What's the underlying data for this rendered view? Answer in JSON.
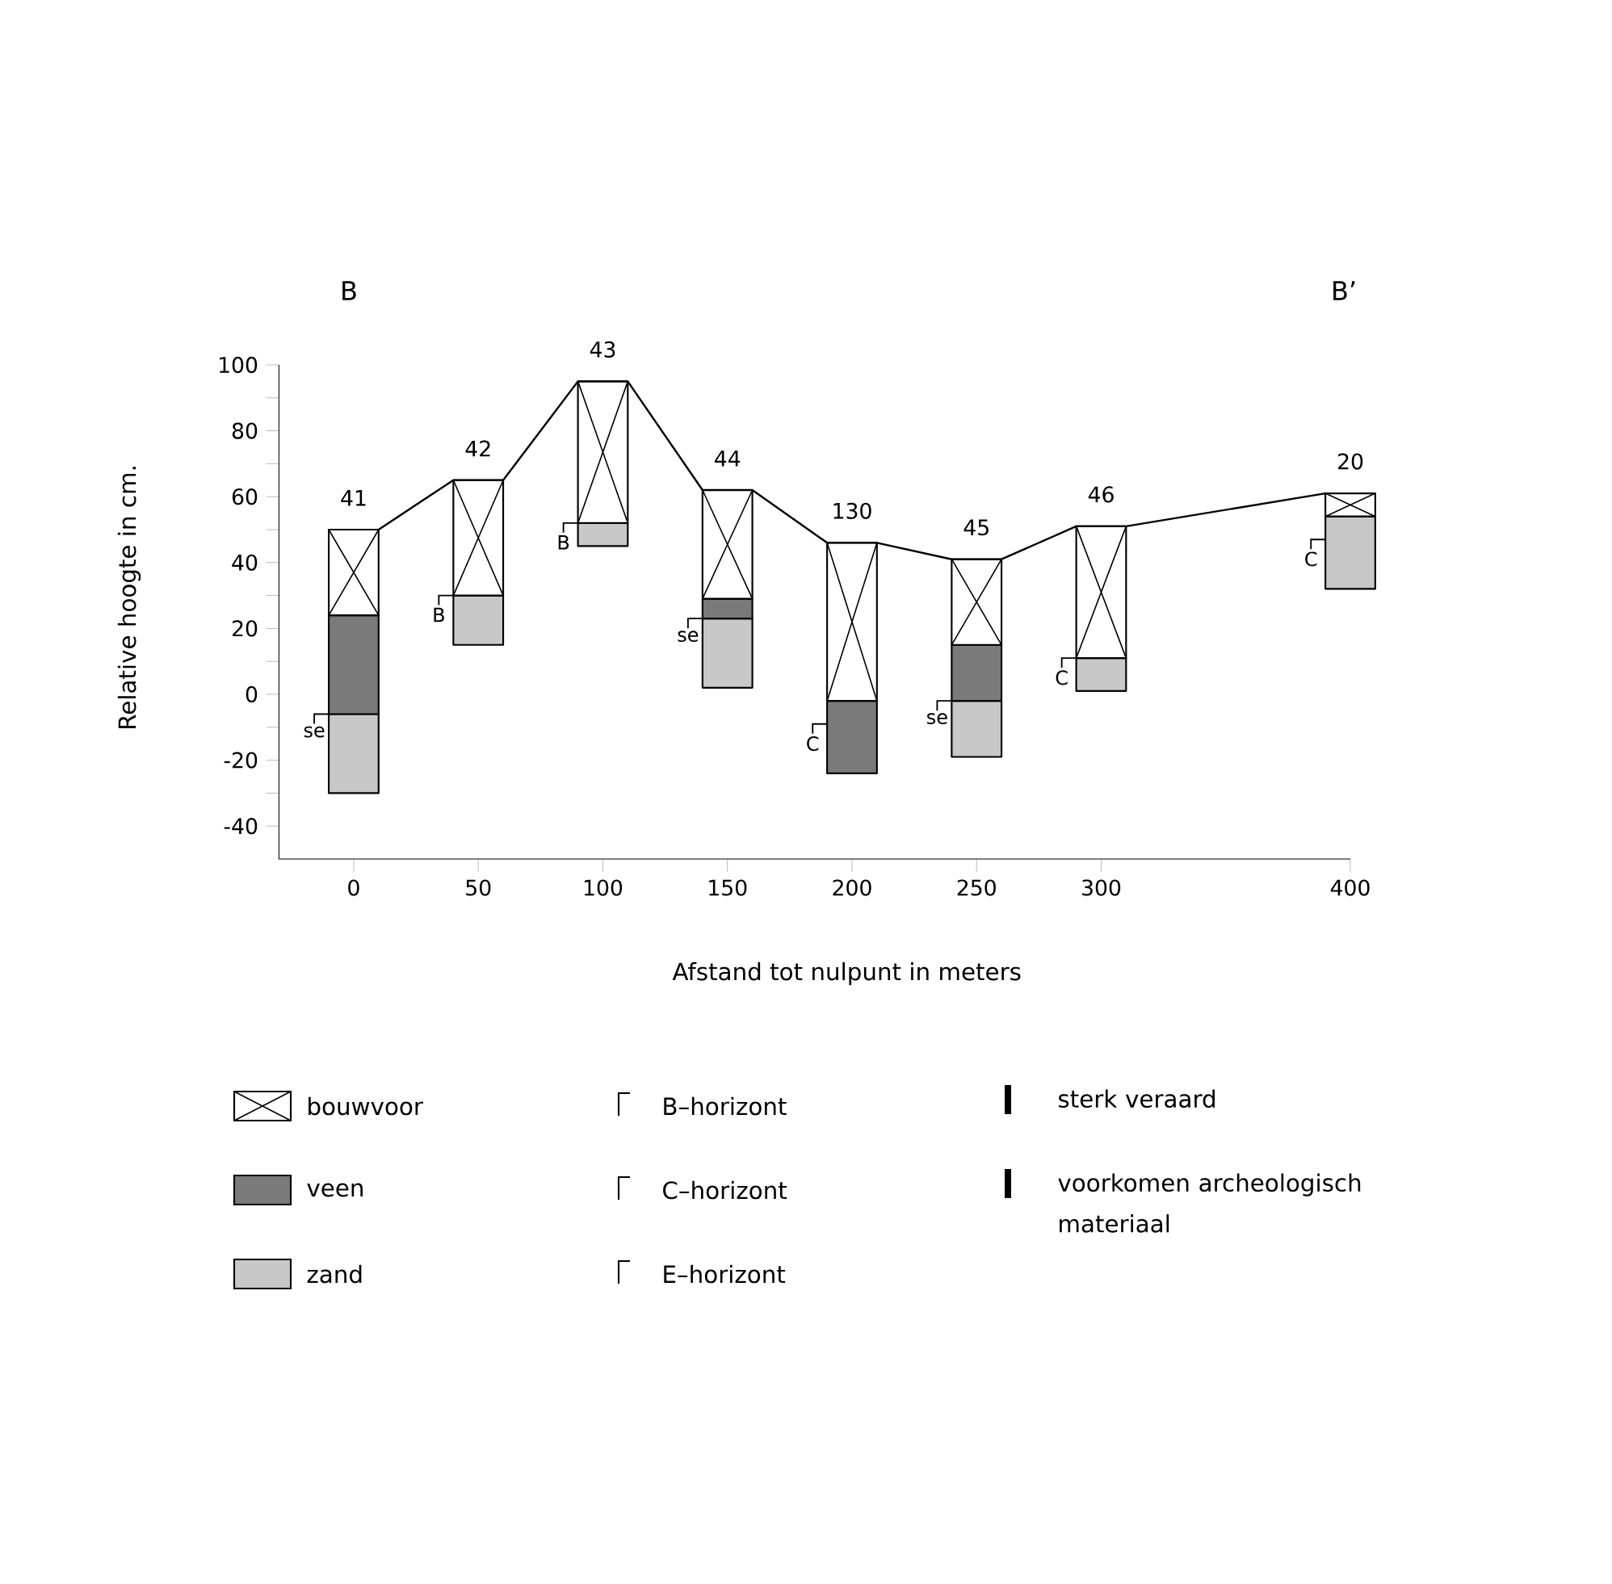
{
  "chart_data": {
    "type": "bar",
    "legend": "bottom",
    "xlabel": "Afstand tot nulpunt in meters",
    "ylabel": "Relative hoogte in cm.",
    "x": [
      0,
      50,
      100,
      150,
      200,
      250,
      300,
      400
    ],
    "xlim": [
      -30,
      400
    ],
    "xticks": [
      0,
      50,
      100,
      150,
      200,
      250,
      300,
      400
    ],
    "ylim": [
      -50,
      100
    ],
    "yticks": [
      -40,
      {
        "value": -30,
        "label": null
      },
      -20,
      {
        "value": -10,
        "label": null
      },
      0,
      {
        "value": 10,
        "label": null
      },
      20,
      {
        "value": 30,
        "label": null
      },
      40,
      {
        "value": 50,
        "label": null
      },
      60,
      {
        "value": 70,
        "label": null
      },
      80,
      {
        "value": 90,
        "label": null
      },
      100
    ],
    "series": [
      {
        "type": "line",
        "color": "#000000",
        "x": [
          10,
          40,
          60,
          90,
          110,
          140,
          160,
          190,
          210,
          240,
          260,
          290,
          310,
          390
        ],
        "values": [
          50,
          65,
          65,
          95,
          95,
          62,
          62,
          46,
          46,
          41,
          41,
          51,
          51,
          61
        ]
      },
      {
        "name": "zand",
        "color": "#c8c8c8",
        "base": [
          -30,
          15,
          45,
          2,
          null,
          -19,
          1,
          32
        ],
        "values": [
          24,
          15,
          7,
          21,
          null,
          17,
          10,
          22
        ]
      },
      {
        "name": "veen",
        "color": "#7a7a7a",
        "base": [
          -6,
          null,
          null,
          23,
          -24,
          -2,
          null,
          null
        ],
        "values": [
          30,
          null,
          null,
          6,
          22,
          17,
          null,
          null
        ]
      },
      {
        "name": "bouwvoor",
        "color": "#ffffff",
        "base": [
          24,
          30,
          52,
          29,
          -2,
          15,
          11,
          54
        ],
        "values": [
          26,
          35,
          43,
          33,
          48,
          26,
          40,
          7
        ]
      }
    ],
    "annotations": [
      "B",
      "B’",
      "C",
      "C",
      {
        "text": "41",
        "x": 0,
        "y": 50
      },
      {
        "text": "42",
        "x": 50,
        "y": 65
      },
      {
        "text": "43",
        "x": 100,
        "y": 95
      },
      {
        "text": "44",
        "x": 150,
        "y": 62
      },
      {
        "text": "130",
        "x": 200,
        "y": 46
      },
      {
        "text": "45",
        "x": 250,
        "y": 41
      },
      {
        "text": "46",
        "x": 300,
        "y": 51
      },
      {
        "text": "20",
        "x": 400,
        "y": 61
      },
      {
        "text": "se",
        "x": 0,
        "y": -6
      },
      {
        "text": "B",
        "x": 50,
        "y": 30
      },
      {
        "text": "B",
        "x": 100,
        "y": 52
      },
      {
        "text": "se",
        "x": 150,
        "y": 23
      },
      {
        "text": "se",
        "x": 250,
        "y": -2
      },
      {
        "text": "C",
        "x": 300,
        "y": 11
      },
      "B–horizont",
      "C–horizont",
      "E–horizont",
      "sterk veraard",
      "voorkomen archeologisch materiaal"
    ]
  }
}
